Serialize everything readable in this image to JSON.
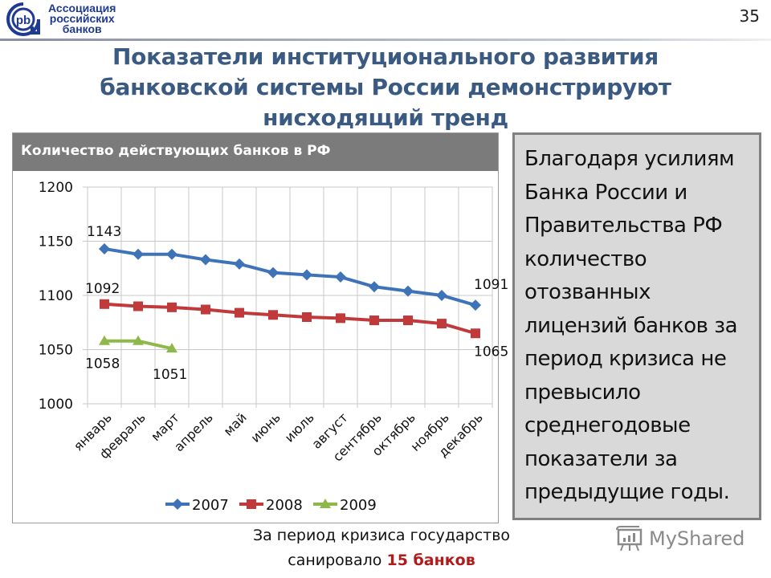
{
  "header": {
    "logo_lines": [
      "Ассоциация",
      "российских",
      "банков"
    ],
    "logo_mark": "pb",
    "slide_number": "35"
  },
  "title": {
    "lines": [
      "Показатели институционального развития",
      "банковской системы России демонстрируют",
      "нисходящий тренд"
    ]
  },
  "chart": {
    "header": "Количество действующих банков в РФ"
  },
  "note": {
    "text": "Благодаря усилиям Банка России и Правительства РФ количество отозванных лицензий банков за период кризиса не превысило среднегодовые показатели за предыдущие годы."
  },
  "footer": {
    "line1": "За период кризиса государство",
    "line2_prefix": "санировало ",
    "line2_emphasis": "15 банков"
  },
  "watermark": {
    "label": "MyShared"
  },
  "colors": {
    "title": "#3a5a82",
    "series_2007": "#3f73b8",
    "series_2008": "#c0393b",
    "series_2009": "#8fb84a",
    "emphasis": "#b01c1c",
    "chart_header_bg": "#7b7b7b",
    "note_bg": "#d9d9d9"
  },
  "chart_data": {
    "type": "line",
    "title": "Количество действующих банков в РФ",
    "xlabel": "",
    "ylabel": "",
    "ylim": [
      1000,
      1200
    ],
    "yticks": [
      1000,
      1050,
      1100,
      1150,
      1200
    ],
    "grid": true,
    "legend_position": "bottom",
    "categories": [
      "январь",
      "февраль",
      "март",
      "апрель",
      "май",
      "июнь",
      "июль",
      "август",
      "сентябрь",
      "октябрь",
      "ноябрь",
      "декабрь"
    ],
    "series": [
      {
        "name": "2007",
        "marker": "diamond",
        "values": [
          1143,
          1138,
          1138,
          1133,
          1129,
          1121,
          1119,
          1117,
          1108,
          1104,
          1100,
          1091
        ]
      },
      {
        "name": "2008",
        "marker": "square",
        "values": [
          1092,
          1090,
          1089,
          1087,
          1084,
          1082,
          1080,
          1079,
          1077,
          1077,
          1074,
          1065
        ]
      },
      {
        "name": "2009",
        "marker": "triangle",
        "values": [
          1058,
          1058,
          1051,
          null,
          null,
          null,
          null,
          null,
          null,
          null,
          null,
          null
        ]
      }
    ],
    "annotations": [
      {
        "series": "2007",
        "index": 0,
        "text": "1143"
      },
      {
        "series": "2007",
        "index": 11,
        "text": "1091"
      },
      {
        "series": "2008",
        "index": 0,
        "text": "1092"
      },
      {
        "series": "2008",
        "index": 11,
        "text": "1065"
      },
      {
        "series": "2009",
        "index": 0,
        "text": "1058"
      },
      {
        "series": "2009",
        "index": 2,
        "text": "1051"
      }
    ]
  }
}
